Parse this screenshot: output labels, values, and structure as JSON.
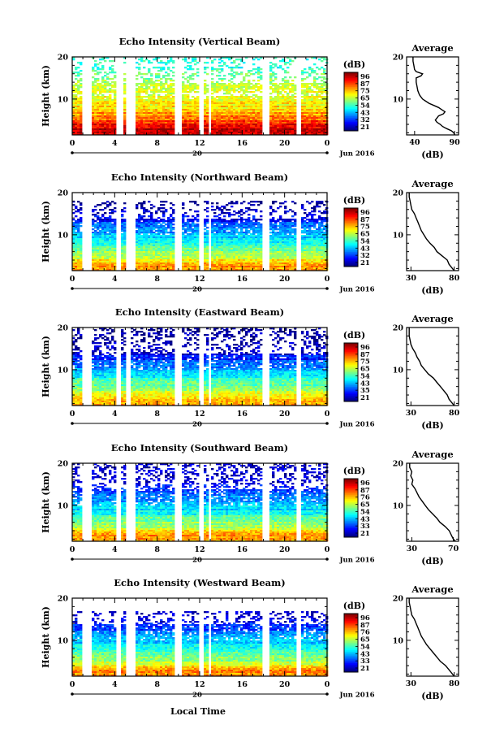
{
  "figure": {
    "xlabel": "Local Time",
    "date_label": "Jun 2016",
    "day_label": "20"
  },
  "chart_data": [
    {
      "type": "heatmap",
      "title": "Echo Intensity (Vertical Beam)",
      "ylabel": "Height (km)",
      "xlabel": "Local Time",
      "x_ticks": [
        "0",
        "4",
        "8",
        "12",
        "16",
        "20",
        "0"
      ],
      "y_ticks": [
        "20",
        "10"
      ],
      "xlim": [
        0,
        24
      ],
      "ylim": [
        1.5,
        20
      ],
      "colorbar": {
        "label": "(dB)",
        "ticks": [
          "96",
          "87",
          "75",
          "65",
          "54",
          "43",
          "32",
          "21"
        ],
        "range": [
          21,
          96
        ]
      },
      "missing_intervals_hours": [
        [
          1.0,
          1.8
        ],
        [
          4.2,
          4.8
        ],
        [
          5.1,
          6.0
        ],
        [
          9.7,
          10.3
        ],
        [
          11.9,
          12.3
        ],
        [
          12.8,
          13.1
        ],
        [
          18.0,
          18.5
        ],
        [
          21.0,
          21.6
        ]
      ],
      "gap_ranges_km": [
        [
          10.8,
          11.6
        ],
        [
          17.6,
          18.3
        ]
      ],
      "profile_ridges": [
        [
          3,
          90
        ],
        [
          5.5,
          78
        ],
        [
          8,
          70
        ],
        [
          14,
          60
        ],
        [
          18,
          52
        ]
      ],
      "profile_cap_km": 21,
      "average": {
        "title": "Average",
        "xlabel": "(dB)",
        "x_ticks": [
          "40",
          "90"
        ],
        "xlim": [
          30,
          95
        ],
        "y_ticks": [
          "20",
          "10"
        ],
        "profile": [
          [
            1.5,
            90
          ],
          [
            2,
            89
          ],
          [
            2.5,
            86
          ],
          [
            3,
            80
          ],
          [
            3.5,
            75
          ],
          [
            4,
            72
          ],
          [
            4.5,
            68
          ],
          [
            5,
            66
          ],
          [
            5.5,
            68
          ],
          [
            6,
            70
          ],
          [
            6.5,
            76
          ],
          [
            7,
            78
          ],
          [
            7.5,
            74
          ],
          [
            8,
            70
          ],
          [
            8.5,
            64
          ],
          [
            9,
            58
          ],
          [
            9.5,
            54
          ],
          [
            10,
            50
          ],
          [
            10.5,
            48
          ],
          [
            11,
            46
          ],
          [
            11.5,
            45
          ],
          [
            12,
            44
          ],
          [
            13,
            43
          ],
          [
            14,
            42
          ],
          [
            15,
            42
          ],
          [
            15.5,
            48
          ],
          [
            16,
            50
          ],
          [
            16.5,
            42
          ],
          [
            17,
            40
          ],
          [
            18,
            39
          ],
          [
            19,
            38
          ],
          [
            20,
            38
          ]
        ]
      }
    },
    {
      "type": "heatmap",
      "title": "Echo Intensity (Northward Beam)",
      "ylabel": "Height (km)",
      "xlabel": "Local Time",
      "x_ticks": [
        "0",
        "4",
        "8",
        "12",
        "16",
        "20",
        "0"
      ],
      "y_ticks": [
        "20",
        "10"
      ],
      "xlim": [
        0,
        24
      ],
      "ylim": [
        1.5,
        20
      ],
      "colorbar": {
        "label": "(dB)",
        "ticks": [
          "96",
          "87",
          "75",
          "65",
          "54",
          "43",
          "32",
          "21"
        ],
        "range": [
          21,
          96
        ]
      },
      "missing_intervals_hours": [
        [
          1.0,
          1.8
        ],
        [
          4.2,
          4.6
        ],
        [
          5.1,
          6.0
        ],
        [
          9.7,
          10.3
        ],
        [
          11.9,
          12.3
        ],
        [
          12.8,
          13.1
        ],
        [
          18.0,
          18.5
        ],
        [
          21.0,
          21.6
        ]
      ],
      "gap_ranges_km": [],
      "profile_ridges": [
        [
          3,
          75
        ],
        [
          5,
          62
        ],
        [
          9,
          48
        ],
        [
          14,
          30
        ],
        [
          17,
          24
        ]
      ],
      "profile_cap_km": 18,
      "average": {
        "title": "Average",
        "xlabel": "(dB)",
        "x_ticks": [
          "30",
          "80"
        ],
        "xlim": [
          25,
          85
        ],
        "y_ticks": [
          "20",
          "10"
        ],
        "profile": [
          [
            1.5,
            80
          ],
          [
            2,
            78
          ],
          [
            2.5,
            76
          ],
          [
            3,
            74
          ],
          [
            4,
            72
          ],
          [
            5,
            66
          ],
          [
            6,
            60
          ],
          [
            7,
            57
          ],
          [
            8,
            52
          ],
          [
            9,
            48
          ],
          [
            10,
            45
          ],
          [
            11,
            42
          ],
          [
            12,
            40
          ],
          [
            13,
            38
          ],
          [
            14,
            36
          ],
          [
            15,
            34
          ],
          [
            16,
            31
          ],
          [
            17,
            30
          ],
          [
            18,
            29
          ],
          [
            19,
            28
          ],
          [
            20,
            28
          ]
        ]
      }
    },
    {
      "type": "heatmap",
      "title": "Echo Intensity (Eastward Beam)",
      "ylabel": "Height (km)",
      "xlabel": "Local Time",
      "x_ticks": [
        "0",
        "4",
        "8",
        "12",
        "16",
        "20",
        "0"
      ],
      "y_ticks": [
        "20",
        "10"
      ],
      "xlim": [
        0,
        24
      ],
      "ylim": [
        1.5,
        20
      ],
      "colorbar": {
        "label": "(dB)",
        "ticks": [
          "96",
          "87",
          "75",
          "65",
          "54",
          "43",
          "35",
          "21"
        ],
        "range": [
          21,
          96
        ]
      },
      "missing_intervals_hours": [
        [
          1.0,
          1.8
        ],
        [
          4.2,
          4.6
        ],
        [
          5.1,
          5.6
        ],
        [
          9.7,
          10.3
        ],
        [
          11.9,
          12.3
        ],
        [
          12.8,
          13.1
        ],
        [
          18.0,
          18.5
        ],
        [
          21.0,
          21.6
        ]
      ],
      "gap_ranges_km": [],
      "profile_ridges": [
        [
          3,
          75
        ],
        [
          5,
          62
        ],
        [
          9,
          46
        ],
        [
          14,
          28
        ],
        [
          19,
          22
        ]
      ],
      "profile_cap_km": 20,
      "average": {
        "title": "Average",
        "xlabel": "(dB)",
        "x_ticks": [
          "30",
          "80"
        ],
        "xlim": [
          25,
          85
        ],
        "y_ticks": [
          "20",
          "10"
        ],
        "profile": [
          [
            1.5,
            80
          ],
          [
            2,
            78
          ],
          [
            3,
            74
          ],
          [
            4,
            72
          ],
          [
            5,
            68
          ],
          [
            6,
            64
          ],
          [
            7,
            60
          ],
          [
            8,
            56
          ],
          [
            9,
            50
          ],
          [
            10,
            46
          ],
          [
            11,
            42
          ],
          [
            12,
            40
          ],
          [
            13,
            37
          ],
          [
            14,
            35
          ],
          [
            15,
            32
          ],
          [
            16,
            30
          ],
          [
            17,
            29
          ],
          [
            18,
            28
          ],
          [
            19,
            28
          ],
          [
            20,
            28
          ]
        ]
      }
    },
    {
      "type": "heatmap",
      "title": "Echo Intensity (Southward Beam)",
      "ylabel": "Height (km)",
      "xlabel": "Local Time",
      "x_ticks": [
        "0",
        "4",
        "8",
        "12",
        "16",
        "20",
        "0"
      ],
      "y_ticks": [
        "20",
        "10"
      ],
      "xlim": [
        0,
        24
      ],
      "ylim": [
        1.5,
        20
      ],
      "colorbar": {
        "label": "(dB)",
        "ticks": [
          "96",
          "87",
          "76",
          "65",
          "54",
          "43",
          "33",
          "21"
        ],
        "range": [
          21,
          96
        ]
      },
      "missing_intervals_hours": [
        [
          1.0,
          1.8
        ],
        [
          4.2,
          4.6
        ],
        [
          5.1,
          6.0
        ],
        [
          9.7,
          10.3
        ],
        [
          11.9,
          12.3
        ],
        [
          12.8,
          13.1
        ],
        [
          18.0,
          18.5
        ],
        [
          21.0,
          21.6
        ]
      ],
      "gap_ranges_km": [],
      "profile_ridges": [
        [
          3,
          75
        ],
        [
          5,
          62
        ],
        [
          9,
          48
        ],
        [
          14,
          32
        ],
        [
          17,
          26
        ]
      ],
      "profile_cap_km": 20,
      "average": {
        "title": "Average",
        "xlabel": "(dB)",
        "x_ticks": [
          "30",
          "70"
        ],
        "xlim": [
          25,
          75
        ],
        "y_ticks": [
          "20",
          "10"
        ],
        "profile": [
          [
            1.5,
            72
          ],
          [
            2,
            70
          ],
          [
            3,
            68
          ],
          [
            4,
            66
          ],
          [
            5,
            62
          ],
          [
            6,
            57
          ],
          [
            7,
            54
          ],
          [
            8,
            50
          ],
          [
            9,
            46
          ],
          [
            10,
            43
          ],
          [
            11,
            40
          ],
          [
            12,
            37
          ],
          [
            13,
            35
          ],
          [
            14,
            33
          ],
          [
            15,
            30
          ],
          [
            16,
            31
          ],
          [
            17,
            29
          ],
          [
            18,
            30
          ],
          [
            19,
            28
          ],
          [
            20,
            28
          ]
        ]
      }
    },
    {
      "type": "heatmap",
      "title": "Echo Intensity (Westward Beam)",
      "ylabel": "Height (km)",
      "xlabel": "Local Time",
      "x_ticks": [
        "0",
        "4",
        "8",
        "12",
        "16",
        "20",
        "0"
      ],
      "y_ticks": [
        "20",
        "10"
      ],
      "xlim": [
        0,
        24
      ],
      "ylim": [
        1.5,
        20
      ],
      "colorbar": {
        "label": "(dB)",
        "ticks": [
          "96",
          "87",
          "76",
          "65",
          "54",
          "43",
          "33",
          "21"
        ],
        "range": [
          21,
          96
        ]
      },
      "missing_intervals_hours": [
        [
          1.0,
          1.8
        ],
        [
          4.2,
          4.6
        ],
        [
          5.1,
          6.0
        ],
        [
          9.7,
          10.3
        ],
        [
          11.9,
          12.3
        ],
        [
          12.8,
          13.1
        ],
        [
          18.0,
          18.5
        ],
        [
          21.0,
          21.6
        ]
      ],
      "gap_ranges_km": [],
      "profile_ridges": [
        [
          3,
          78
        ],
        [
          5,
          62
        ],
        [
          9,
          48
        ],
        [
          14,
          30
        ],
        [
          17,
          25
        ]
      ],
      "profile_cap_km": 17,
      "average": {
        "title": "Average",
        "xlabel": "(dB)",
        "x_ticks": [
          "30",
          "80"
        ],
        "xlim": [
          25,
          85
        ],
        "y_ticks": [
          "20",
          "10"
        ],
        "profile": [
          [
            1.5,
            80
          ],
          [
            2,
            78
          ],
          [
            3,
            74
          ],
          [
            4,
            70
          ],
          [
            5,
            64
          ],
          [
            6,
            60
          ],
          [
            7,
            56
          ],
          [
            8,
            52
          ],
          [
            9,
            48
          ],
          [
            10,
            45
          ],
          [
            11,
            42
          ],
          [
            12,
            40
          ],
          [
            13,
            38
          ],
          [
            14,
            36
          ],
          [
            15,
            34
          ],
          [
            16,
            31
          ],
          [
            17,
            30
          ],
          [
            18,
            29
          ],
          [
            19,
            28
          ],
          [
            20,
            28
          ]
        ]
      }
    }
  ]
}
